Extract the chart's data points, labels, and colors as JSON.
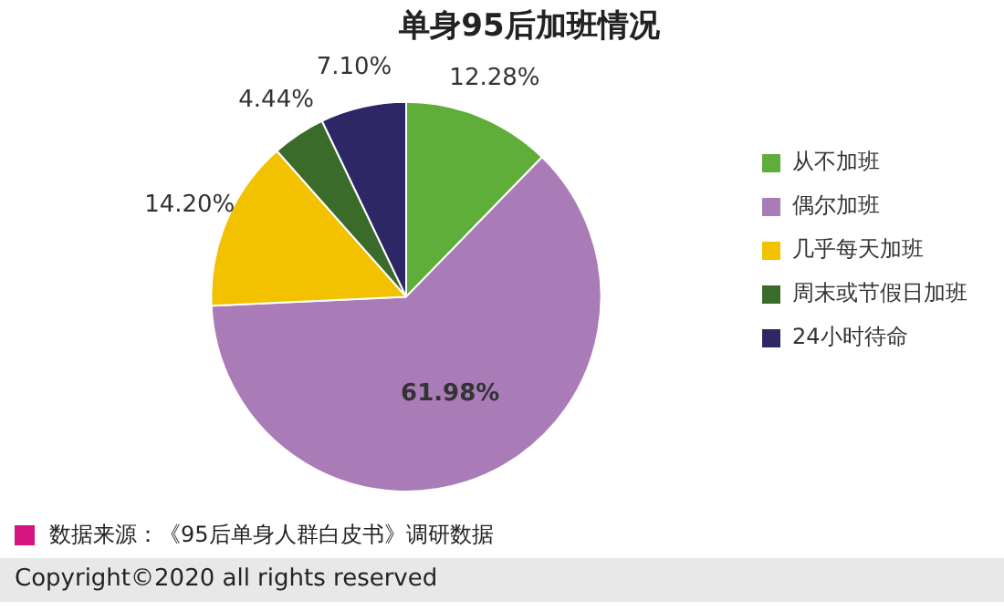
{
  "chart_data": {
    "type": "pie",
    "title": "单身95后加班情况",
    "categories": [
      "从不加班",
      "偶尔加班",
      "几乎每天加班",
      "周末或节假日加班",
      "24小时待命"
    ],
    "values": [
      12.28,
      61.98,
      14.2,
      4.44,
      7.1
    ],
    "colors": [
      "#5fae3a",
      "#a97cb8",
      "#f2c100",
      "#3b6b2b",
      "#2d2766"
    ],
    "value_labels": [
      "12.28%",
      "61.98%",
      "14.20%",
      "4.44%",
      "7.10%"
    ],
    "legend": "right",
    "annotations": [
      "数据来源：《95后单身人群白皮书》调研数据",
      "Copyright©2020 all rights reserved"
    ]
  }
}
